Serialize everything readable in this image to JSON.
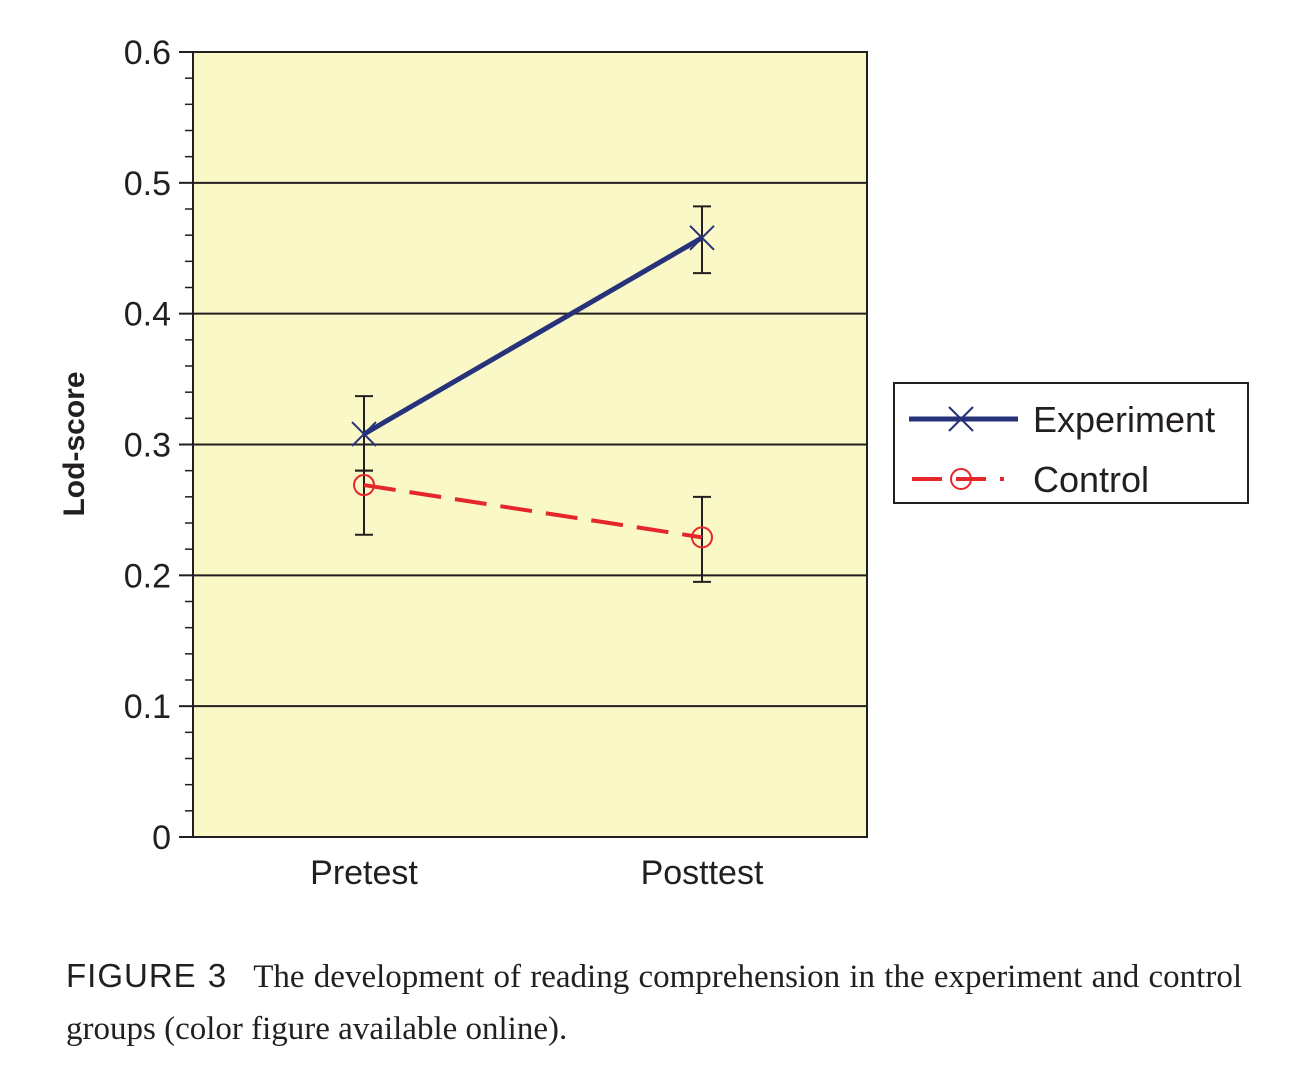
{
  "chart_data": {
    "type": "line",
    "title": "",
    "xlabel": "",
    "ylabel": "Lod-score",
    "ylim": [
      0,
      0.6
    ],
    "yticks": [
      "0",
      "0.1",
      "0.2",
      "0.3",
      "0.4",
      "0.5",
      "0.6"
    ],
    "categories": [
      "Pretest",
      "Posttest"
    ],
    "grid": "horizontal major gridlines",
    "plot_background": "#fbf8c8",
    "legend_position": "right",
    "series": [
      {
        "name": "Experiment",
        "values": [
          0.308,
          0.458
        ],
        "error_low": [
          0.28,
          0.431
        ],
        "error_high": [
          0.337,
          0.482
        ],
        "color": "#26327a",
        "line_style": "solid",
        "marker": "x"
      },
      {
        "name": "Control",
        "values": [
          0.269,
          0.229
        ],
        "error_low": [
          0.231,
          0.195
        ],
        "error_high": [
          0.28,
          0.26
        ],
        "color": "#e5262b",
        "line_style": "dashed",
        "marker": "circle"
      }
    ]
  },
  "caption": {
    "label": "FIGURE 3",
    "text": "The development of reading comprehension in the experiment and control groups (color figure available online)."
  }
}
